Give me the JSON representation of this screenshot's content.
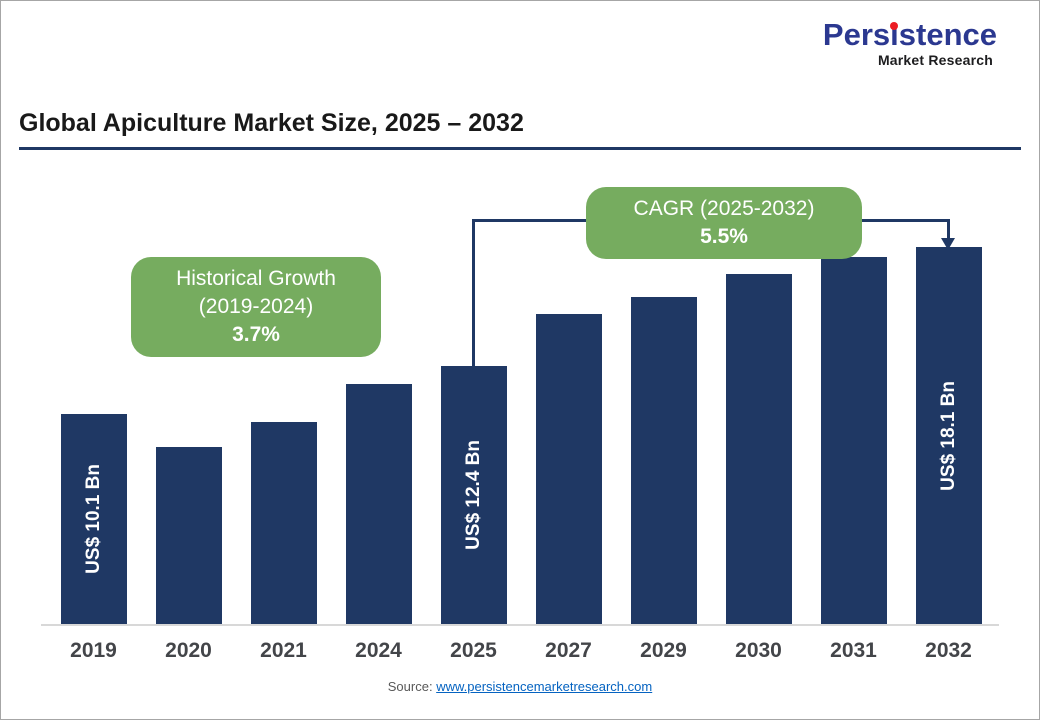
{
  "logo": {
    "part1": "Pers",
    "part2": "i",
    "part3": "stence",
    "subtitle": "Market Research"
  },
  "title": "Global Apiculture Market Size, 2025 – 2032",
  "chart_data": {
    "type": "bar",
    "title": "Global Apiculture Market Size, 2025 – 2032",
    "categories": [
      "2019",
      "2020",
      "2021",
      "2024",
      "2025",
      "2027",
      "2029",
      "2030",
      "2031",
      "2032"
    ],
    "values": [
      10.1,
      8.5,
      9.7,
      11.5,
      12.4,
      14.9,
      15.7,
      16.8,
      17.6,
      18.1
    ],
    "bar_labels": [
      "US$ 10.1 Bn",
      "",
      "",
      "",
      "US$ 12.4 Bn",
      "",
      "",
      "",
      "",
      "US$ 18.1 Bn"
    ],
    "xlabel": "",
    "ylabel": "",
    "ylim": [
      0,
      19
    ],
    "grid": false,
    "legend": "none",
    "bar_color": "#1F3864",
    "annotation_color": "#76AC5F",
    "annotations": {
      "historical": {
        "line1": "Historical Growth",
        "line2": "(2019-2024)",
        "line3": "3.7%"
      },
      "cagr": {
        "line1": "CAGR (2025-2032)",
        "line2": "5.5%"
      }
    }
  },
  "source": {
    "prefix": "Source: ",
    "link": "www.persistencemarketresearch.com"
  }
}
